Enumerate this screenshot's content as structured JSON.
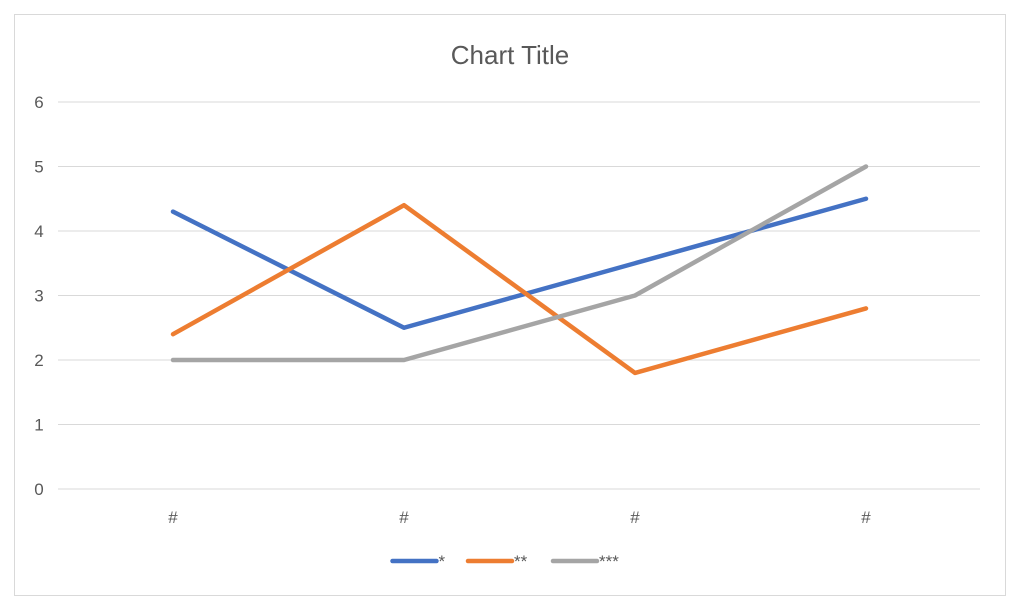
{
  "chart_data": {
    "type": "line",
    "title": "Chart Title",
    "categories": [
      "#",
      "#",
      "#",
      "#"
    ],
    "series": [
      {
        "name": "*",
        "values": [
          4.3,
          2.5,
          3.5,
          4.5
        ],
        "color": "#4472c4"
      },
      {
        "name": "**",
        "values": [
          2.4,
          4.4,
          1.8,
          2.8
        ],
        "color": "#ed7d31"
      },
      {
        "name": "***",
        "values": [
          2.0,
          2.0,
          3.0,
          5.0
        ],
        "color": "#a5a5a5"
      }
    ],
    "xlabel": "",
    "ylabel": "",
    "ylim": [
      0,
      6
    ],
    "yticks": [
      "0",
      "1",
      "2",
      "3",
      "4",
      "5",
      "6"
    ],
    "grid": true,
    "legend": "bottom"
  }
}
